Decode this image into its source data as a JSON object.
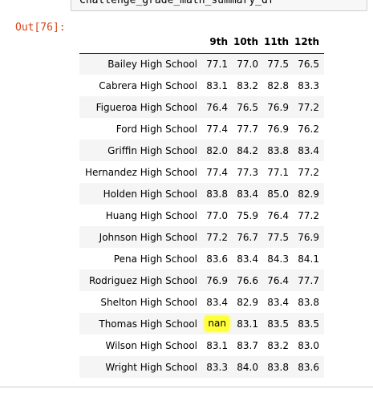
{
  "input_cell": {
    "code": "Challenge_grade_math_summary_df"
  },
  "output_prompt": {
    "label": "Out[76]:"
  },
  "table": {
    "index_header": "",
    "columns": [
      "9th",
      "10th",
      "11th",
      "12th"
    ],
    "rows": [
      {
        "school": "Bailey High School",
        "values": [
          "77.1",
          "77.0",
          "77.5",
          "76.5"
        ]
      },
      {
        "school": "Cabrera High School",
        "values": [
          "83.1",
          "83.2",
          "82.8",
          "83.3"
        ]
      },
      {
        "school": "Figueroa High School",
        "values": [
          "76.4",
          "76.5",
          "76.9",
          "77.2"
        ]
      },
      {
        "school": "Ford High School",
        "values": [
          "77.4",
          "77.7",
          "76.9",
          "76.2"
        ]
      },
      {
        "school": "Griffin High School",
        "values": [
          "82.0",
          "84.2",
          "83.8",
          "83.4"
        ]
      },
      {
        "school": "Hernandez High School",
        "values": [
          "77.4",
          "77.3",
          "77.1",
          "77.2"
        ]
      },
      {
        "school": "Holden High School",
        "values": [
          "83.8",
          "83.4",
          "85.0",
          "82.9"
        ]
      },
      {
        "school": "Huang High School",
        "values": [
          "77.0",
          "75.9",
          "76.4",
          "77.2"
        ]
      },
      {
        "school": "Johnson High School",
        "values": [
          "77.2",
          "76.7",
          "77.5",
          "76.9"
        ]
      },
      {
        "school": "Pena High School",
        "values": [
          "83.6",
          "83.4",
          "84.3",
          "84.1"
        ]
      },
      {
        "school": "Rodriguez High School",
        "values": [
          "76.9",
          "76.6",
          "76.4",
          "77.7"
        ]
      },
      {
        "school": "Shelton High School",
        "values": [
          "83.4",
          "82.9",
          "83.4",
          "83.8"
        ]
      },
      {
        "school": "Thomas High School",
        "values": [
          "nan",
          "83.1",
          "83.5",
          "83.5"
        ]
      },
      {
        "school": "Wilson High School",
        "values": [
          "83.1",
          "83.7",
          "83.2",
          "83.0"
        ]
      },
      {
        "school": "Wright High School",
        "values": [
          "83.3",
          "84.0",
          "83.8",
          "83.6"
        ]
      }
    ],
    "highlight": {
      "row": 12,
      "col": 0,
      "color": "#ffff3a"
    }
  },
  "colors": {
    "prompt": "#d84315",
    "row_stripe": "#f5f5f5",
    "input_bg": "#f7f7f7"
  }
}
